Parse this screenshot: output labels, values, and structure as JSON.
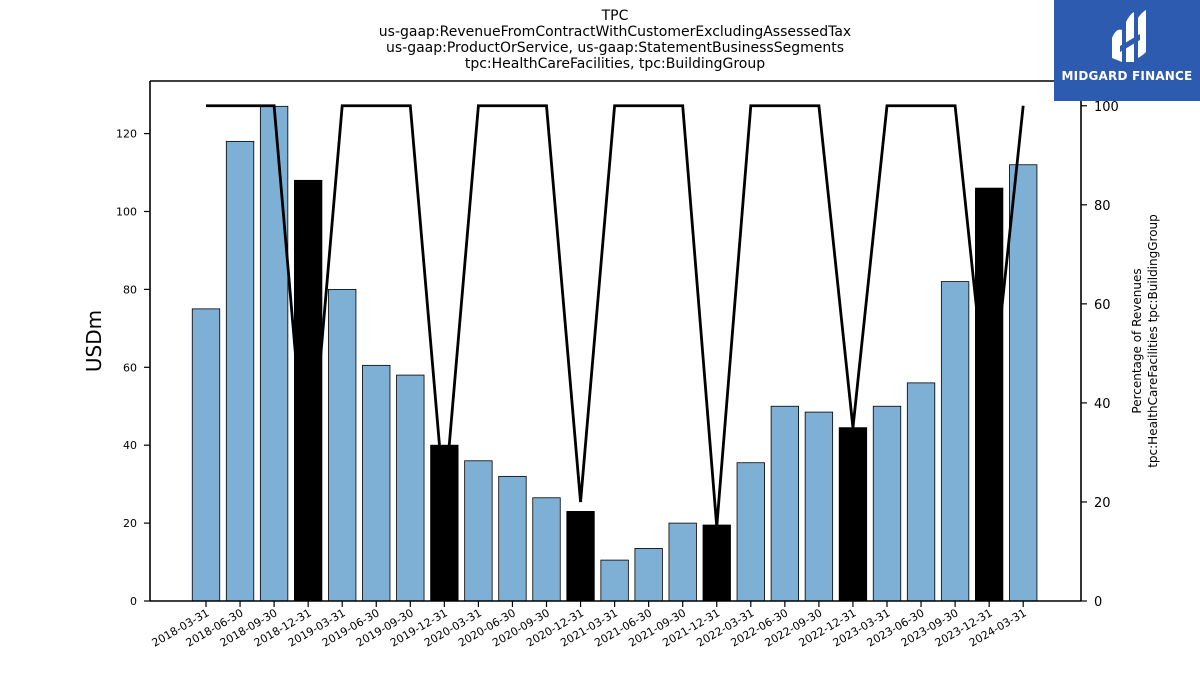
{
  "chart_data": {
    "type": "bar",
    "title_lines": [
      "TPC",
      "us-gaap:RevenueFromContractWithCustomerExcludingAssessedTax",
      "us-gaap:ProductOrService, us-gaap:StatementBusinessSegments",
      "tpc:HealthCareFacilities, tpc:BuildingGroup"
    ],
    "categories": [
      "2018-03-31",
      "2018-06-30",
      "2018-09-30",
      "2018-12-31",
      "2019-03-31",
      "2019-06-30",
      "2019-09-30",
      "2019-12-31",
      "2020-03-31",
      "2020-06-30",
      "2020-09-30",
      "2020-12-31",
      "2021-03-31",
      "2021-06-30",
      "2021-09-30",
      "2021-12-31",
      "2022-03-31",
      "2022-06-30",
      "2022-09-30",
      "2022-12-31",
      "2023-03-31",
      "2023-06-30",
      "2023-09-30",
      "2023-12-31",
      "2024-03-31"
    ],
    "values": [
      75,
      118,
      127,
      108,
      80,
      60.5,
      58,
      40,
      36,
      32,
      26.5,
      23,
      10.5,
      13.5,
      20,
      19.5,
      35.5,
      50,
      48.5,
      44.5,
      50,
      56,
      82,
      106,
      112
    ],
    "highlight_indices": [
      3,
      7,
      11,
      15,
      19,
      23
    ],
    "percentage_line": [
      100,
      100,
      100,
      20,
      100,
      100,
      100,
      20,
      100,
      100,
      100,
      20,
      100,
      100,
      100,
      15,
      100,
      100,
      100,
      35,
      100,
      100,
      100,
      35,
      100
    ],
    "ylabel": "USDm",
    "ylabel_right": [
      "Percentage of Revenues",
      "tpc:HealthCareFacilities tpc:BuildingGroup"
    ],
    "ylim": [
      0,
      133.5
    ],
    "ylim_right": [
      0,
      105
    ],
    "yticks": [
      0,
      20,
      40,
      60,
      80,
      100,
      120
    ],
    "yticks_right": [
      0,
      20,
      40,
      60,
      80,
      100
    ],
    "grid": false,
    "colors": {
      "bar": "#7eb0d5",
      "highlight_bar": "#000000",
      "line": "#000000"
    }
  },
  "logo": {
    "text": "MIDGARD FINANCE",
    "background": "#2d5bb0"
  }
}
